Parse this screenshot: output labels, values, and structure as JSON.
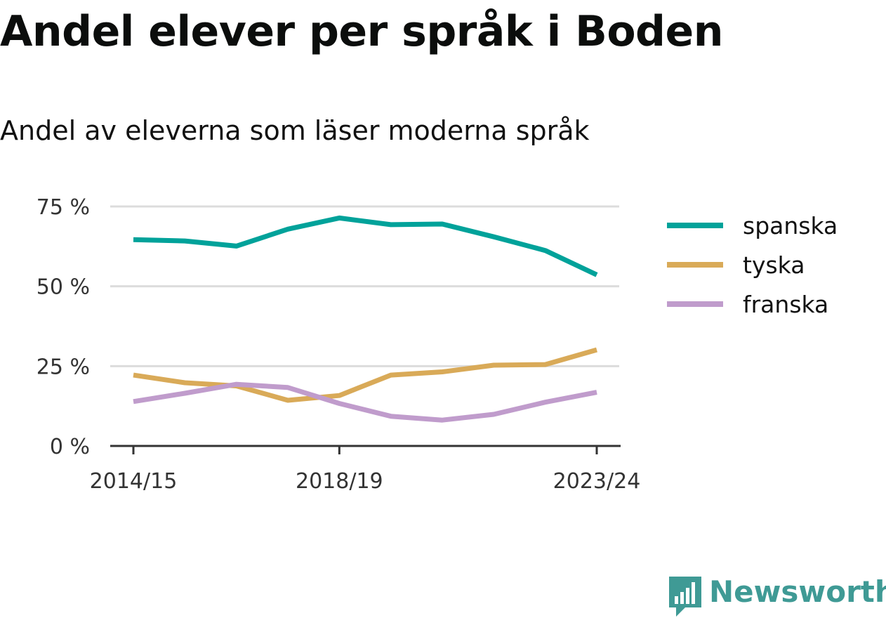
{
  "title": "Andel elever per språk i Boden",
  "subtitle": "Andel av eleverna som läser moderna språk",
  "brand": {
    "name": "Newsworthy",
    "color": "#3f9a95",
    "icon": "bar-chart-speech-bubble-icon"
  },
  "chart_data": {
    "type": "line",
    "x": [
      "2014/15",
      "2015/16",
      "2016/17",
      "2017/18",
      "2018/19",
      "2019/20",
      "2020/21",
      "2021/22",
      "2022/23",
      "2023/24"
    ],
    "x_tick_labels": [
      "2014/15",
      "2018/19",
      "2023/24"
    ],
    "series": [
      {
        "name": "spanska",
        "color": "#00a29a",
        "values": [
          64.6,
          64.2,
          62.6,
          67.9,
          71.4,
          69.3,
          69.5,
          65.5,
          61.2,
          53.6
        ]
      },
      {
        "name": "tyska",
        "color": "#d9aa58",
        "values": [
          22.2,
          19.8,
          18.8,
          14.3,
          15.8,
          22.2,
          23.2,
          25.3,
          25.5,
          30.1
        ]
      },
      {
        "name": "franska",
        "color": "#c09ccc",
        "values": [
          13.9,
          16.5,
          19.3,
          18.3,
          13.3,
          9.3,
          8.1,
          9.9,
          13.7,
          16.8
        ]
      }
    ],
    "y_ticks": [
      0,
      25,
      50,
      75
    ],
    "y_tick_labels": [
      "0 %",
      "25 %",
      "50 %",
      "75 %"
    ],
    "ylim": [
      0,
      75
    ],
    "grid": "horizontal",
    "legend": "right"
  }
}
